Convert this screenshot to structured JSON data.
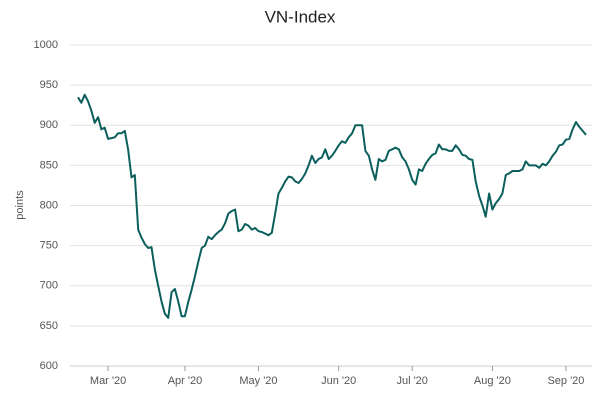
{
  "chart_data": {
    "type": "line",
    "title": "VN-Index",
    "y_label": "points",
    "categories": [
      null,
      null,
      null,
      null,
      null,
      null,
      null,
      null,
      null,
      "Mar '20",
      null,
      null,
      null,
      null,
      null,
      null,
      null,
      null,
      null,
      null,
      null,
      null,
      null,
      null,
      null,
      null,
      null,
      null,
      null,
      null,
      null,
      null,
      "Apr '20",
      null,
      null,
      null,
      null,
      null,
      null,
      null,
      null,
      null,
      null,
      null,
      null,
      null,
      null,
      null,
      null,
      null,
      null,
      null,
      null,
      null,
      "May '20",
      null,
      null,
      null,
      null,
      null,
      null,
      null,
      null,
      null,
      null,
      null,
      null,
      null,
      null,
      null,
      null,
      null,
      null,
      null,
      null,
      null,
      null,
      null,
      "Jun '20",
      null,
      null,
      null,
      null,
      null,
      null,
      null,
      null,
      null,
      null,
      null,
      null,
      null,
      null,
      null,
      null,
      null,
      null,
      null,
      null,
      null,
      "Jul '20",
      null,
      null,
      null,
      null,
      null,
      null,
      null,
      null,
      null,
      null,
      null,
      null,
      null,
      null,
      null,
      null,
      null,
      null,
      null,
      null,
      null,
      null,
      null,
      "Aug '20",
      null,
      null,
      null,
      null,
      null,
      null,
      null,
      null,
      null,
      null,
      null,
      null,
      null,
      null,
      null,
      null,
      null,
      null,
      null,
      null,
      null,
      "Sep '20",
      null,
      null,
      null,
      null,
      null,
      null
    ],
    "values": [
      935,
      928,
      938,
      930,
      918,
      903,
      910,
      895,
      897,
      883,
      884,
      885,
      890,
      890,
      893,
      870,
      835,
      838,
      770,
      760,
      752,
      747,
      748,
      720,
      700,
      680,
      665,
      660,
      692,
      696,
      680,
      662,
      662,
      680,
      695,
      712,
      730,
      747,
      750,
      761,
      758,
      763,
      767,
      770,
      778,
      790,
      793,
      795,
      768,
      770,
      777,
      775,
      770,
      772,
      768,
      767,
      765,
      763,
      766,
      790,
      815,
      822,
      830,
      836,
      835,
      830,
      828,
      833,
      840,
      850,
      862,
      853,
      858,
      860,
      870,
      858,
      862,
      868,
      875,
      880,
      878,
      885,
      890,
      900,
      900,
      900,
      868,
      862,
      845,
      832,
      858,
      855,
      857,
      868,
      870,
      872,
      870,
      860,
      855,
      845,
      832,
      826,
      845,
      843,
      852,
      858,
      863,
      865,
      876,
      870,
      870,
      868,
      868,
      875,
      870,
      863,
      862,
      858,
      857,
      830,
      812,
      800,
      786,
      815,
      795,
      803,
      808,
      815,
      838,
      840,
      843,
      843,
      843,
      845,
      855,
      850,
      850,
      850,
      847,
      852,
      850,
      855,
      862,
      867,
      875,
      876,
      882,
      883,
      895,
      904,
      898,
      893,
      888
    ],
    "color": "#0b5f5c",
    "ylim": [
      600,
      1000
    ],
    "yticks": [
      600,
      650,
      700,
      750,
      800,
      850,
      900,
      950,
      1000
    ],
    "grid": true
  }
}
